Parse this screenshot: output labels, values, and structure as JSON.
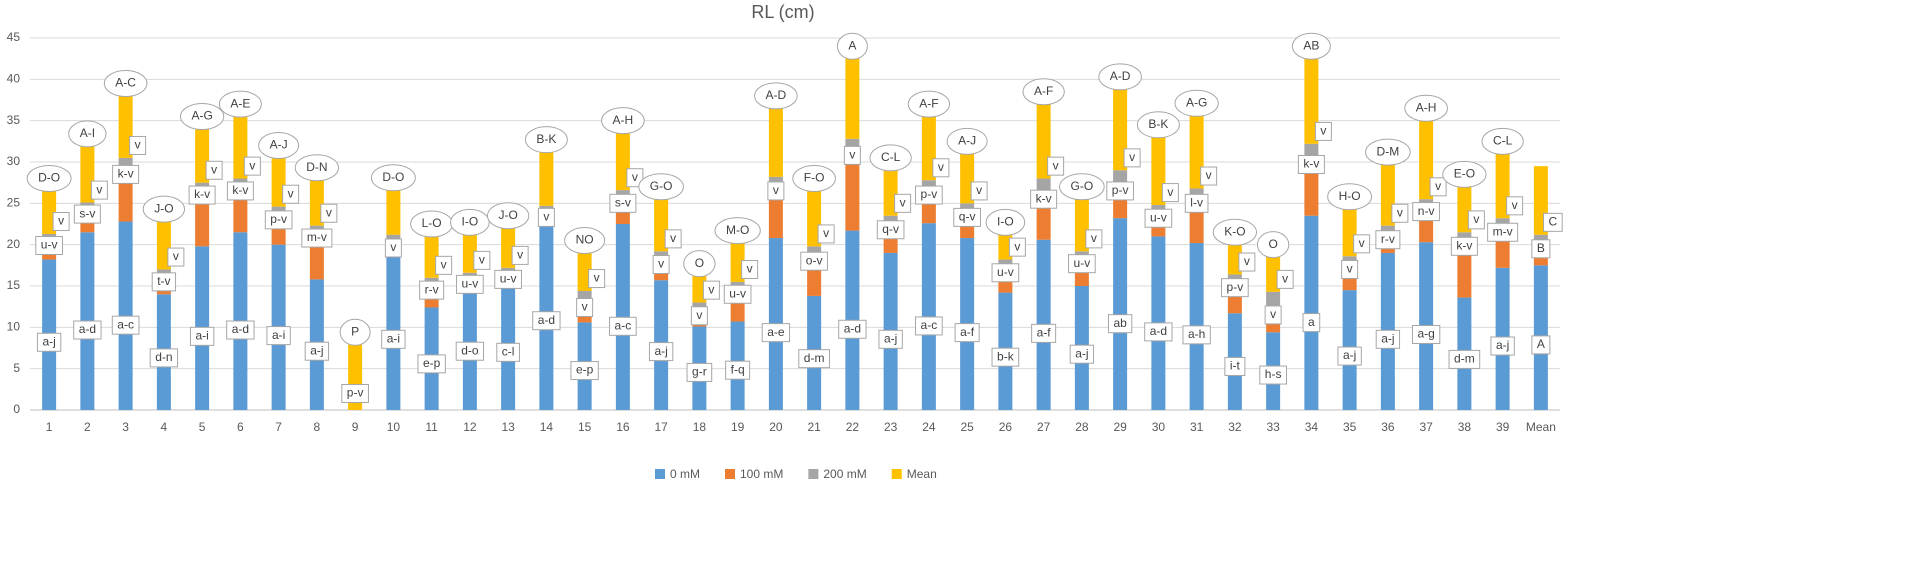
{
  "chart_data": {
    "type": "bar",
    "stacked": true,
    "title": "RL (cm)",
    "categories": [
      "1",
      "2",
      "3",
      "4",
      "5",
      "6",
      "7",
      "8",
      "9",
      "10",
      "11",
      "12",
      "13",
      "14",
      "15",
      "16",
      "17",
      "18",
      "19",
      "20",
      "21",
      "22",
      "23",
      "24",
      "25",
      "26",
      "27",
      "28",
      "29",
      "30",
      "31",
      "32",
      "33",
      "34",
      "35",
      "36",
      "37",
      "38",
      "39",
      "Mean"
    ],
    "series": [
      {
        "name": "0 mM",
        "color": "#5b9bd5",
        "values": [
          18.2,
          21.5,
          22.8,
          14,
          19.8,
          21.5,
          20,
          15.8,
          0,
          19,
          12.4,
          15.8,
          15.5,
          24,
          10.6,
          22.5,
          15.7,
          10.1,
          10.7,
          20.8,
          13.8,
          21.7,
          19,
          22.6,
          20.8,
          14.2,
          20.6,
          15,
          23.2,
          21,
          20.2,
          11.7,
          9.4,
          23.5,
          14.5,
          19,
          20.3,
          13.6,
          17.2,
          17.5
        ]
      },
      {
        "name": "100 mM",
        "color": "#ed7d31",
        "values": [
          2.7,
          3.2,
          6.7,
          2.5,
          7.2,
          6,
          4,
          6,
          0,
          1.6,
          3.1,
          0.4,
          1.3,
          0.3,
          2.8,
          3.5,
          2.9,
          2.3,
          4.3,
          6.7,
          5.2,
          10.1,
          3.8,
          4.4,
          3.5,
          3.4,
          5.9,
          3.7,
          4.3,
          3.2,
          5.8,
          4.1,
          3.1,
          7.2,
          3.5,
          2.6,
          4.7,
          7.2,
          5.3,
          3
        ]
      },
      {
        "name": "200 mM",
        "color": "#a5a5a5",
        "values": [
          0.4,
          0.4,
          1,
          0.5,
          0.5,
          0.5,
          0.6,
          0.5,
          0,
          0.6,
          0.5,
          0.4,
          0.4,
          0.4,
          1,
          0.6,
          0.6,
          0.6,
          0.5,
          0.7,
          0.8,
          1,
          0.7,
          0.8,
          0.7,
          0.6,
          1.5,
          0.5,
          1.5,
          0.6,
          0.8,
          0.6,
          1.8,
          1.5,
          0.6,
          0.7,
          0.5,
          0.7,
          0.7,
          0.7
        ]
      },
      {
        "name": "Mean",
        "color": "#ffc000",
        "values": [
          5.2,
          6.8,
          7.5,
          5.8,
          6.5,
          7.5,
          5.9,
          5.5,
          7.9,
          5.4,
          5,
          4.6,
          4.8,
          6.5,
          4.6,
          6.9,
          6.3,
          3.2,
          4.7,
          8.3,
          6.7,
          10.7,
          5.5,
          7.7,
          6,
          3,
          9,
          6.3,
          9.8,
          8.2,
          8.8,
          3.6,
          4.2,
          10.6,
          5.7,
          7.4,
          9.5,
          5.5,
          7.8,
          8.3
        ]
      }
    ],
    "annotations": [
      {
        "low": "a-j",
        "mid": "u-v",
        "high": "v",
        "top": "D-O"
      },
      {
        "low": "a-d",
        "mid": "s-v",
        "high": "v",
        "top": "A-I"
      },
      {
        "low": "a-c",
        "mid": "k-v",
        "high": "v",
        "top": "A-C"
      },
      {
        "low": "d-n",
        "mid": "t-v",
        "high": "v",
        "top": "J-O"
      },
      {
        "low": "a-i",
        "mid": "k-v",
        "high": "v",
        "top": "A-G"
      },
      {
        "low": "a-d",
        "mid": "k-v",
        "high": "v",
        "top": "A-E"
      },
      {
        "low": "a-i",
        "mid": "p-v",
        "high": "v",
        "top": "A-J"
      },
      {
        "low": "a-j",
        "mid": "m-v",
        "high": "v",
        "top": "D-N"
      },
      {
        "low": "p-v",
        "top": "P"
      },
      {
        "low": "a-i",
        "mid": "v",
        "top": "D-O"
      },
      {
        "low": "e-p",
        "mid": "r-v",
        "high": "v",
        "top": "L-O"
      },
      {
        "low": "d-o",
        "mid": "u-v",
        "high": "v",
        "top": "I-O"
      },
      {
        "low": "c-l",
        "mid": "u-v",
        "high": "v",
        "top": "J-O"
      },
      {
        "low": "a-d",
        "mid": "v",
        "top": "B-K"
      },
      {
        "low": "e-p",
        "mid": "v",
        "high": "v",
        "top": "NO"
      },
      {
        "low": "a-c",
        "mid": "s-v",
        "high": "v",
        "top": "A-H"
      },
      {
        "low": "a-j",
        "mid": "v",
        "high": "v",
        "top": "G-O"
      },
      {
        "low": "g-r",
        "mid": "v",
        "high": "v",
        "top": "O"
      },
      {
        "low": "f-q",
        "mid": "u-v",
        "high": "v",
        "top": "M-O"
      },
      {
        "low": "a-e",
        "mid": "v",
        "top": "A-D"
      },
      {
        "low": "d-m",
        "mid": "o-v",
        "high": "v",
        "top": "F-O"
      },
      {
        "low": "a-d",
        "mid": "v",
        "top": "A"
      },
      {
        "low": "a-j",
        "mid": "q-v",
        "high": "v",
        "top": "C-L"
      },
      {
        "low": "a-c",
        "mid": "p-v",
        "high": "v",
        "top": "A-F"
      },
      {
        "low": "a-f",
        "mid": "q-v",
        "high": "v",
        "top": "A-J"
      },
      {
        "low": "b-k",
        "mid": "u-v",
        "high": "v",
        "top": "I-O"
      },
      {
        "low": "a-f",
        "mid": "k-v",
        "high": "v",
        "top": "A-F"
      },
      {
        "low": "a-j",
        "mid": "u-v",
        "high": "v",
        "top": "G-O"
      },
      {
        "low": "ab",
        "mid": "p-v",
        "high": "v",
        "top": "A-D"
      },
      {
        "low": "a-d",
        "mid": "u-v",
        "high": "v",
        "top": "B-K"
      },
      {
        "low": "a-h",
        "mid": "l-v",
        "high": "v",
        "top": "A-G"
      },
      {
        "low": "i-t",
        "mid": "p-v",
        "high": "v",
        "top": "K-O"
      },
      {
        "low": "h-s",
        "mid": "v",
        "high": "v",
        "top": "O"
      },
      {
        "low": "a",
        "mid": "k-v",
        "high": "v",
        "top": "AB"
      },
      {
        "low": "a-j",
        "mid": "v",
        "high": "v",
        "top": "H-O"
      },
      {
        "low": "a-j",
        "mid": "r-v",
        "high": "v",
        "top": "D-M"
      },
      {
        "low": "a-g",
        "mid": "n-v",
        "high": "v",
        "top": "A-H"
      },
      {
        "low": "d-m",
        "mid": "k-v",
        "high": "v",
        "top": "E-O"
      },
      {
        "low": "a-j",
        "mid": "m-v",
        "high": "v",
        "top": "C-L"
      },
      {
        "low": "A",
        "mid": "B",
        "high": "C"
      }
    ],
    "ylim": [
      0,
      45
    ],
    "yticks": [
      0,
      5,
      10,
      15,
      20,
      25,
      30,
      35,
      40,
      45
    ],
    "grid": true,
    "legend": "bottom"
  }
}
